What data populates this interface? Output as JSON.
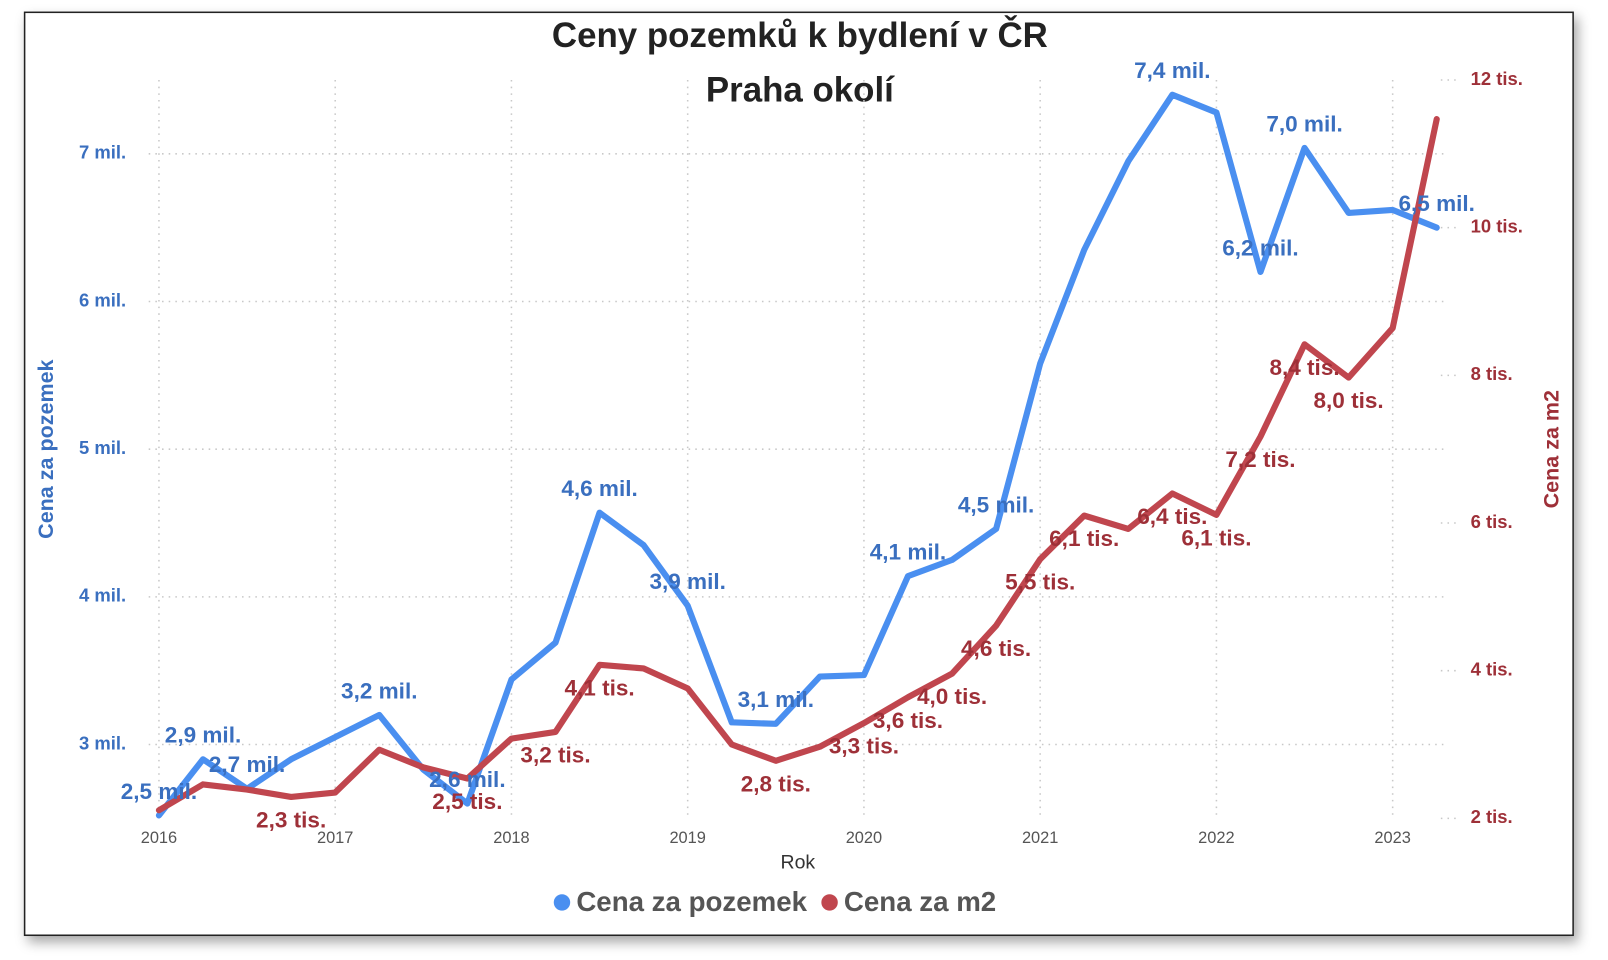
{
  "chart_data": {
    "type": "line",
    "title": "Ceny pozemků k bydlení v ČR",
    "subtitle": "Praha okolí",
    "x_label": "Rok",
    "y_label": "Cena za pozemek",
    "y2_label": "Cena za m2",
    "x": [
      2016,
      2016.25,
      2016.5,
      2016.75,
      2017,
      2017.25,
      2017.5,
      2017.75,
      2018,
      2018.25,
      2018.5,
      2018.75,
      2019,
      2019.25,
      2019.5,
      2019.75,
      2020,
      2020.25,
      2020.5,
      2020.75,
      2021,
      2021.25,
      2021.5,
      2021.75,
      2022,
      2022.25,
      2022.5,
      2022.75,
      2023,
      2023.25
    ],
    "xlim": [
      2016,
      2023.25
    ],
    "xticks": [
      2016,
      2017,
      2018,
      2019,
      2020,
      2021,
      2022,
      2023
    ],
    "ylim": [
      2.5,
      7.5
    ],
    "yticks": [
      {
        "value": 3,
        "label": "3 mil."
      },
      {
        "value": 4,
        "label": "4 mil."
      },
      {
        "value": 5,
        "label": "5 mil."
      },
      {
        "value": 6,
        "label": "6 mil."
      },
      {
        "value": 7,
        "label": "7 mil."
      }
    ],
    "y2lim": [
      2,
      12
    ],
    "y2ticks": [
      {
        "value": 2,
        "label": "2 tis."
      },
      {
        "value": 4,
        "label": "4 tis."
      },
      {
        "value": 6,
        "label": "6 tis."
      },
      {
        "value": 8,
        "label": "8 tis."
      },
      {
        "value": 10,
        "label": "10 tis."
      },
      {
        "value": 12,
        "label": "12 tis."
      }
    ],
    "grid": true,
    "legend": "bottom",
    "series": [
      {
        "name": "Cena za pozemek",
        "color": "#4a8ff0",
        "label_color": "#3a6fbf",
        "axis": "y",
        "values": [
          2.52,
          2.9,
          2.7,
          2.9,
          3.05,
          3.2,
          2.83,
          2.6,
          3.44,
          3.69,
          4.57,
          4.35,
          3.94,
          3.15,
          3.14,
          3.46,
          3.47,
          4.14,
          4.25,
          4.46,
          5.58,
          6.35,
          6.95,
          7.4,
          7.28,
          6.2,
          7.04,
          6.6,
          6.62,
          6.5
        ],
        "value_labels": [
          "2,5 mil.",
          "2,9 mil.",
          "2,7 mil.",
          null,
          null,
          "3,2 mil.",
          null,
          "2,6 mil.",
          null,
          null,
          "4,6 mil.",
          null,
          "3,9 mil.",
          null,
          "3,1 mil.",
          null,
          null,
          "4,1 mil.",
          null,
          "4,5 mil.",
          null,
          null,
          null,
          "7,4 mil.",
          null,
          "6,2 mil.",
          "7,0 mil.",
          null,
          null,
          "6,5 mil."
        ]
      },
      {
        "name": "Cena za m2",
        "color": "#c0464e",
        "label_color": "#9e3038",
        "axis": "y2",
        "values": [
          2.11,
          2.46,
          2.39,
          2.29,
          2.35,
          2.93,
          2.69,
          2.54,
          3.08,
          3.17,
          4.08,
          4.03,
          3.76,
          3.0,
          2.78,
          2.97,
          3.29,
          3.64,
          3.96,
          4.61,
          5.51,
          6.1,
          5.92,
          6.4,
          6.11,
          7.17,
          8.42,
          7.97,
          8.64,
          11.47
        ],
        "value_labels": [
          null,
          null,
          null,
          "2,3 tis.",
          null,
          null,
          null,
          "2,5 tis.",
          null,
          "3,2 tis.",
          "4,1 tis.",
          null,
          null,
          null,
          "2,8 tis.",
          null,
          "3,3 tis.",
          "3,6 tis.",
          "4,0 tis.",
          "4,6 tis.",
          "5,5 tis.",
          "6,1 tis.",
          null,
          "6,4 tis.",
          "6,1 tis.",
          "7,2 tis.",
          "8,4 tis.",
          "8,0 tis.",
          null,
          null
        ]
      }
    ]
  }
}
